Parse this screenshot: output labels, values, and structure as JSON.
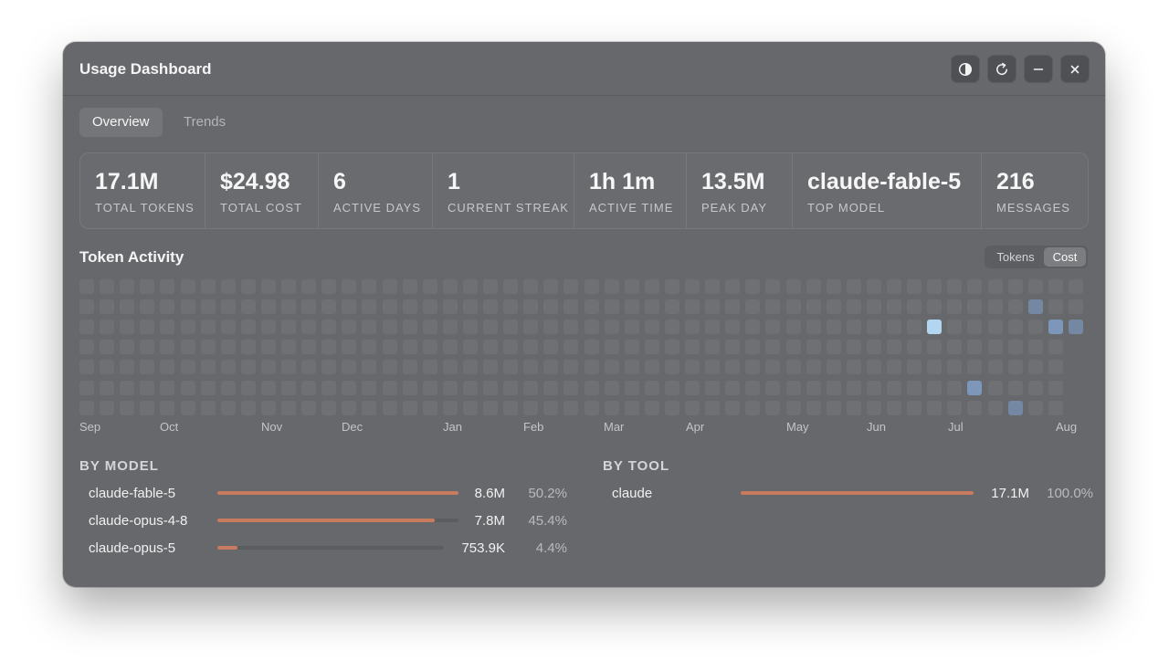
{
  "window": {
    "title": "Usage Dashboard"
  },
  "controls": {
    "theme": {
      "icon": "contrast-icon"
    },
    "refresh": {
      "icon": "refresh-icon"
    },
    "minimize": {
      "icon": "minimize-icon"
    },
    "close": {
      "icon": "close-icon"
    }
  },
  "tabs": [
    {
      "label": "Overview",
      "active": true
    },
    {
      "label": "Trends",
      "active": false
    }
  ],
  "stats": [
    {
      "value": "17.1M",
      "label": "TOTAL TOKENS"
    },
    {
      "value": "$24.98",
      "label": "TOTAL COST"
    },
    {
      "value": "6",
      "label": "ACTIVE DAYS"
    },
    {
      "value": "1",
      "label": "CURRENT STREAK"
    },
    {
      "value": "1h 1m",
      "label": "ACTIVE TIME"
    },
    {
      "value": "13.5M",
      "label": "PEAK DAY"
    },
    {
      "value": "claude-fable-5",
      "label": "TOP MODEL"
    },
    {
      "value": "216",
      "label": "MESSAGES"
    }
  ],
  "activity": {
    "title": "Token Activity",
    "toggle": [
      {
        "label": "Tokens",
        "active": false
      },
      {
        "label": "Cost",
        "active": true
      }
    ],
    "months": [
      "Sep",
      "Oct",
      "Nov",
      "Dec",
      "Jan",
      "Feb",
      "Mar",
      "Apr",
      "May",
      "Jun",
      "Jul",
      "Aug"
    ],
    "colors": {
      "empty": "#6f7073",
      "low": "#7487a3",
      "mid": "#7d97bb",
      "high": "#b3d6f0"
    },
    "active_cells": [
      {
        "week": 47,
        "day": 1,
        "level": "low"
      },
      {
        "week": 42,
        "day": 2,
        "level": "high"
      },
      {
        "week": 48,
        "day": 2,
        "level": "mid"
      },
      {
        "week": 49,
        "day": 2,
        "level": "low"
      },
      {
        "week": 44,
        "day": 5,
        "level": "mid"
      },
      {
        "week": 46,
        "day": 6,
        "level": "low"
      }
    ]
  },
  "by_model": {
    "title": "BY MODEL",
    "rows": [
      {
        "name": "claude-fable-5",
        "value": "8.6M",
        "pct": "50.2%",
        "fraction": 1.0
      },
      {
        "name": "claude-opus-4-8",
        "value": "7.8M",
        "pct": "45.4%",
        "fraction": 0.9
      },
      {
        "name": "claude-opus-5",
        "value": "753.9K",
        "pct": "4.4%",
        "fraction": 0.088
      }
    ]
  },
  "by_tool": {
    "title": "BY TOOL",
    "rows": [
      {
        "name": "claude",
        "value": "17.1M",
        "pct": "100.0%",
        "fraction": 1.0
      }
    ]
  },
  "accent_color": "#c87b5f"
}
